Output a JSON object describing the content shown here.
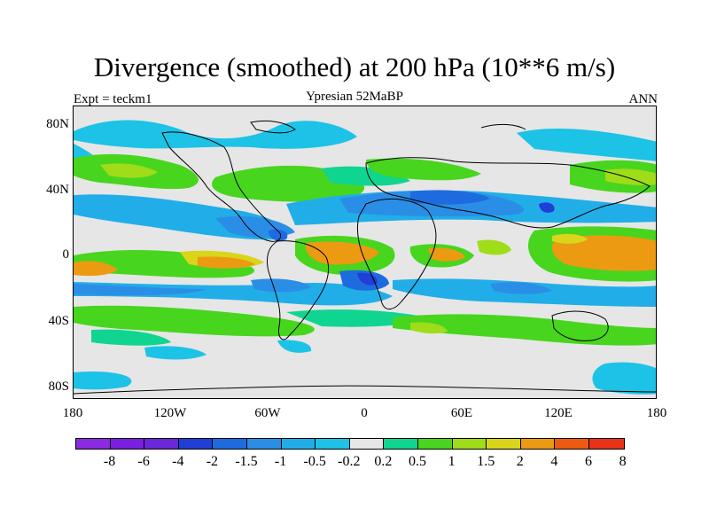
{
  "title": "Divergence (smoothed) at 200 hPa (10**6 m/s)",
  "subtitle_left": "Expt = teckm1",
  "subtitle_center": "Ypresian  52MaBP",
  "subtitle_right": "ANN",
  "lat_labels": [
    "80N",
    "40N",
    "0",
    "40S",
    "80S"
  ],
  "lon_labels": [
    "180",
    "120W",
    "60W",
    "0",
    "60E",
    "120E",
    "180"
  ],
  "colorbar": {
    "labels": [
      "-8",
      "-6",
      "-4",
      "-2",
      "-1.5",
      "-1",
      "-0.5",
      "-0.2",
      "0.2",
      "0.5",
      "1",
      "1.5",
      "2",
      "4",
      "6",
      "8"
    ],
    "colors": [
      "#8a2be2",
      "#7a1fe0",
      "#6a28d8",
      "#1f3fd6",
      "#1e6be0",
      "#2a8ee6",
      "#21aee8",
      "#1cc3e6",
      "#e6e6e6",
      "#10d590",
      "#48d51e",
      "#9fdc1a",
      "#d9d51a",
      "#ec9a12",
      "#ee5a12",
      "#e8321a"
    ]
  },
  "map_colors": {
    "background": "#e6e6e6",
    "cyan": "#1cc3e6",
    "lightblue": "#21aee8",
    "midblue": "#2a8ee6",
    "blue": "#1e6be0",
    "darkblue": "#1f3fd6",
    "teal": "#10d590",
    "green": "#48d51e",
    "yellowgreen": "#9fdc1a",
    "yellow": "#d9d51a",
    "orange": "#ec9a12",
    "redorange": "#ee5a12"
  }
}
